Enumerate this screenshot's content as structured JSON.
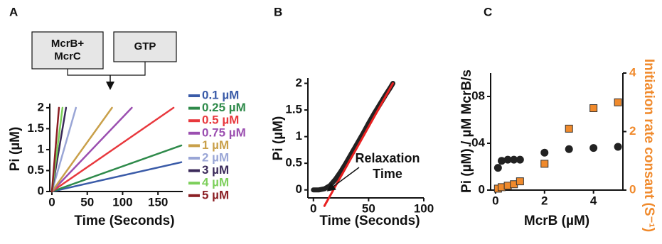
{
  "chart_data": [
    {
      "type": "line",
      "panel": "A",
      "diagram": {
        "boxes": [
          [
            "McrB+",
            "McrC"
          ],
          [
            "GTP"
          ]
        ]
      },
      "xlabel": "Time (Seconds)",
      "ylabel": "Pi (µM)",
      "xlim": [
        -3,
        185
      ],
      "ylim": [
        0,
        2.1
      ],
      "xticks": [
        0,
        50,
        100,
        150
      ],
      "yticks": [
        0,
        0.5,
        1,
        1.5,
        2
      ],
      "legend": "right",
      "series": [
        {
          "name": "0.1 µM",
          "color": "#3a5ba8",
          "x": [
            0,
            183
          ],
          "values": [
            0,
            0.7
          ]
        },
        {
          "name": "0.25 µM",
          "color": "#2e8a4a",
          "x": [
            0,
            183
          ],
          "values": [
            0,
            1.1
          ]
        },
        {
          "name": "0.5 µM",
          "color": "#e8383d",
          "x": [
            0,
            172
          ],
          "values": [
            0,
            2
          ]
        },
        {
          "name": "0.75 µM",
          "color": "#9b4fb0",
          "x": [
            0,
            113
          ],
          "values": [
            0,
            2
          ]
        },
        {
          "name": "1 µM",
          "color": "#c9a04a",
          "x": [
            0,
            85
          ],
          "values": [
            0,
            2
          ]
        },
        {
          "name": "2 µM",
          "color": "#9aa6d6",
          "x": [
            0,
            34
          ],
          "values": [
            0,
            2
          ]
        },
        {
          "name": "3 µM",
          "color": "#3b2a5a",
          "x": [
            0,
            20
          ],
          "values": [
            0,
            2
          ]
        },
        {
          "name": "4 µM",
          "color": "#7ccf5a",
          "x": [
            0,
            15
          ],
          "values": [
            0,
            2
          ]
        },
        {
          "name": "5 µM",
          "color": "#8b1f24",
          "x": [
            0,
            10
          ],
          "values": [
            0,
            2
          ]
        }
      ]
    },
    {
      "type": "line",
      "panel": "B",
      "xlabel": "Time (Seconds)",
      "ylabel": "Pi (µM)",
      "xlim": [
        -5,
        100
      ],
      "ylim": [
        -0.15,
        2.1
      ],
      "xticks": [
        0,
        50,
        100
      ],
      "yticks": [
        0,
        0.5,
        1,
        1.5,
        2
      ],
      "annotation": [
        "Relaxation",
        "Time"
      ],
      "series": [
        {
          "color": "#222222",
          "linewidth": 7,
          "x": [
            0,
            5,
            10,
            15,
            20,
            25,
            30,
            35,
            40,
            45,
            50,
            55,
            60,
            65,
            70,
            72
          ],
          "values": [
            0,
            0,
            0.02,
            0.08,
            0.2,
            0.35,
            0.52,
            0.7,
            0.88,
            1.06,
            1.25,
            1.43,
            1.6,
            1.77,
            1.93,
            2.0
          ]
        },
        {
          "color": "#e82020",
          "linewidth": 3,
          "x": [
            10,
            72
          ],
          "values": [
            -0.3,
            2
          ]
        }
      ]
    },
    {
      "type": "scatter",
      "panel": "C",
      "xlabel": "McrB (µM)",
      "ylabel": "Pi (µM) / µM McrB/s",
      "y2label": "Initiation rate consant (S⁻¹)",
      "xlim": [
        -0.2,
        5.2
      ],
      "ylim": [
        0,
        0.1
      ],
      "y2lim": [
        0,
        4
      ],
      "xticks": [
        0,
        2,
        4
      ],
      "yticks": [
        0,
        {
          "value": 0.04,
          "label": ".04"
        },
        {
          "value": 0.08,
          "label": ".08"
        }
      ],
      "y2ticks": [
        0,
        2,
        4
      ],
      "series": [
        {
          "color": "#222222",
          "marker": "circle",
          "x": [
            0.1,
            0.25,
            0.5,
            0.75,
            1,
            2,
            3,
            4,
            5
          ],
          "values": [
            0.019,
            0.025,
            0.026,
            0.026,
            0.026,
            0.032,
            0.035,
            0.036,
            0.037
          ]
        },
        {
          "color": "#f08a2c",
          "marker": "square",
          "axis": "y2",
          "x": [
            0.1,
            0.25,
            0.5,
            0.75,
            1,
            2,
            3,
            4,
            5
          ],
          "values": [
            0.05,
            0.1,
            0.15,
            0.2,
            0.3,
            0.9,
            2.1,
            2.8,
            3.0
          ]
        }
      ]
    }
  ]
}
